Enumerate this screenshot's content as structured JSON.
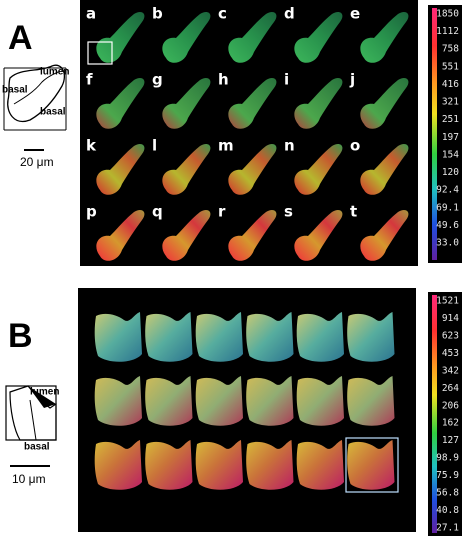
{
  "panel_a": {
    "label": "A",
    "cells": [
      "a",
      "b",
      "c",
      "d",
      "e",
      "f",
      "g",
      "h",
      "i",
      "j",
      "k",
      "l",
      "m",
      "n",
      "o",
      "p",
      "q",
      "r",
      "s",
      "t"
    ],
    "schematic": {
      "lumen": "lumen",
      "basal_left": "basal",
      "basal_right": "basal"
    },
    "scale_bar": "20 μm",
    "colorbar": [
      "1850",
      "1112",
      "758",
      "551",
      "416",
      "321",
      "251",
      "197",
      "154",
      "120",
      "92.4",
      "69.1",
      "49.6",
      "33.0"
    ]
  },
  "panel_b": {
    "label": "B",
    "schematic": {
      "lumen": "lumen",
      "basal": "basal"
    },
    "scale_bar": "10 μm",
    "colorbar": [
      "1521",
      "914",
      "623",
      "453",
      "342",
      "264",
      "206",
      "162",
      "127",
      "98.9",
      "75.9",
      "56.8",
      "40.8",
      "27.1"
    ]
  }
}
